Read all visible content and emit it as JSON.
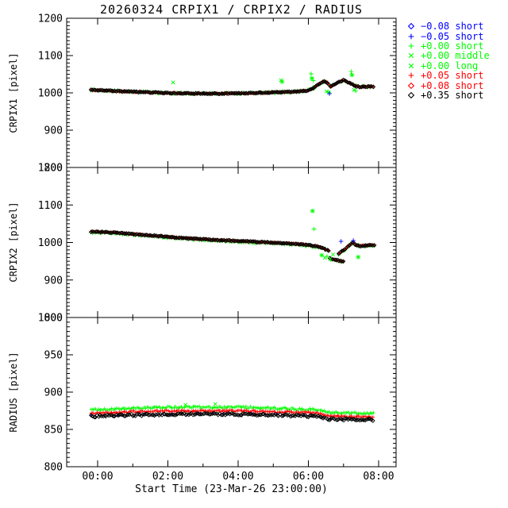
{
  "title": "20260324 CRPIX1 / CRPIX2 / RADIUS",
  "colors": {
    "black": "#000000",
    "red": "#ff0000",
    "green": "#00ff00",
    "blue": "#0000ff",
    "axis": "#000000",
    "bg": "#ffffff"
  },
  "axes": {
    "x": {
      "label": "Start Time (23-Mar-26 23:00:00)",
      "lim_hours": [
        -0.88,
        8.5
      ],
      "ticks": [
        {
          "t": 0,
          "label": "00:00"
        },
        {
          "t": 2,
          "label": "02:00"
        },
        {
          "t": 4,
          "label": "04:00"
        },
        {
          "t": 6,
          "label": "06:00"
        },
        {
          "t": 8,
          "label": "08:00"
        }
      ],
      "minor_every_hours": 1
    }
  },
  "legend": {
    "entries": [
      {
        "marker": "diamond",
        "color": "blue",
        "label": "−0.08 short"
      },
      {
        "marker": "plus",
        "color": "blue",
        "label": "−0.05 short"
      },
      {
        "marker": "plus",
        "color": "green",
        "label": "+0.00 short"
      },
      {
        "marker": "x",
        "color": "green",
        "label": "+0.00 middle"
      },
      {
        "marker": "x",
        "color": "green",
        "label": "+0.00 long"
      },
      {
        "marker": "plus",
        "color": "red",
        "label": "+0.05 short"
      },
      {
        "marker": "diamond",
        "color": "red",
        "label": "+0.08 short"
      },
      {
        "marker": "diamond",
        "color": "black",
        "label": "+0.35 short"
      }
    ]
  },
  "chart_data": [
    {
      "type": "scatter",
      "ylabel": "CRPIX1 [pixel]",
      "ylim": [
        800,
        1200
      ],
      "yticks": [
        800,
        900,
        1000,
        1100,
        1200
      ],
      "yminor": 10,
      "segments": [
        [
          [
            -0.18,
            1008
          ],
          [
            0.3,
            1006
          ],
          [
            1.0,
            1003
          ],
          [
            1.8,
            1000
          ],
          [
            2.6,
            998.5
          ],
          [
            3.4,
            998
          ],
          [
            4.2,
            999
          ],
          [
            5.0,
            1001
          ],
          [
            5.6,
            1003
          ],
          [
            5.95,
            1006
          ],
          [
            6.15,
            1013
          ],
          [
            6.3,
            1024
          ],
          [
            6.45,
            1031
          ],
          [
            6.55,
            1027
          ],
          [
            6.62,
            1016
          ],
          [
            6.7,
            1020
          ],
          [
            6.85,
            1028
          ],
          [
            7.0,
            1034
          ],
          [
            7.1,
            1030
          ],
          [
            7.2,
            1026
          ],
          [
            7.3,
            1020
          ],
          [
            7.45,
            1016
          ],
          [
            7.6,
            1017
          ],
          [
            7.88,
            1017
          ]
        ]
      ],
      "series": [
        {
          "name": "+0.00 short/middle/long",
          "color": "green",
          "marker": "plus",
          "spread": 3.0,
          "seed": 7,
          "step": 1,
          "offset": 0
        },
        {
          "name": "−0.08/−0.05 short",
          "color": "blue",
          "marker": "plus",
          "spread": 1.8,
          "seed": 5,
          "step": 16,
          "offset": 0
        },
        {
          "name": "+0.05/+0.08 short",
          "color": "red",
          "marker": "plus",
          "spread": 1.6,
          "seed": 13,
          "step": 1,
          "offset": 0
        },
        {
          "name": "+0.35 short",
          "color": "black",
          "marker": "diamond",
          "spread": 1.2,
          "seed": 3,
          "step": 1,
          "offset": 0
        }
      ],
      "outliers": [
        [
          2.15,
          1028,
          "green",
          "x"
        ],
        [
          5.22,
          1034,
          "green",
          "x"
        ],
        [
          5.25,
          1030,
          "green",
          "star"
        ],
        [
          6.08,
          1051,
          "green",
          "plus"
        ],
        [
          6.1,
          1039,
          "green",
          "star"
        ],
        [
          6.14,
          1033,
          "green",
          "plus"
        ],
        [
          6.52,
          1004,
          "green",
          "x"
        ],
        [
          6.58,
          1001,
          "green",
          "star"
        ],
        [
          7.22,
          1057,
          "green",
          "plus"
        ],
        [
          7.24,
          1048,
          "green",
          "star"
        ],
        [
          7.3,
          1008,
          "green",
          "x"
        ],
        [
          7.35,
          1005,
          "green",
          "plus"
        ],
        [
          6.6,
          998,
          "blue",
          "plus"
        ]
      ]
    },
    {
      "type": "scatter",
      "ylabel": "CRPIX2 [pixel]",
      "ylim": [
        800,
        1200
      ],
      "yticks": [
        800,
        900,
        1000,
        1100,
        1200
      ],
      "yminor": 10,
      "segments": [
        [
          [
            -0.18,
            1029
          ],
          [
            0.5,
            1026
          ],
          [
            1.0,
            1022.5
          ],
          [
            1.8,
            1016.5
          ],
          [
            2.6,
            1011
          ],
          [
            3.4,
            1006.5
          ],
          [
            4.2,
            1003
          ],
          [
            5.0,
            999.5
          ],
          [
            5.6,
            996.5
          ],
          [
            6.0,
            993.5
          ],
          [
            6.3,
            989
          ],
          [
            6.45,
            984
          ],
          [
            6.6,
            977
          ]
        ],
        [
          [
            6.62,
            957
          ],
          [
            6.8,
            953
          ],
          [
            7.0,
            949
          ]
        ],
        [
          [
            6.87,
            971
          ],
          [
            7.05,
            983
          ],
          [
            7.2,
            996
          ],
          [
            7.28,
            1001
          ],
          [
            7.35,
            992
          ],
          [
            7.5,
            991
          ],
          [
            7.88,
            993
          ]
        ]
      ],
      "series": [
        {
          "name": "+0.00 short/middle/long",
          "color": "green",
          "marker": "plus",
          "spread": 3.0,
          "seed": 27,
          "step": 1,
          "offset": -1.5
        },
        {
          "name": "−0.08/−0.05 short",
          "color": "blue",
          "marker": "plus",
          "spread": 1.8,
          "seed": 25,
          "step": 16,
          "offset": 0
        },
        {
          "name": "+0.05/+0.08 short",
          "color": "red",
          "marker": "plus",
          "spread": 1.6,
          "seed": 33,
          "step": 1,
          "offset": 0
        },
        {
          "name": "+0.35 short",
          "color": "black",
          "marker": "diamond",
          "spread": 1.2,
          "seed": 23,
          "step": 1,
          "offset": 0
        }
      ],
      "outliers": [
        [
          6.12,
          1084,
          "green",
          "star"
        ],
        [
          6.16,
          1036,
          "green",
          "plus"
        ],
        [
          6.38,
          966,
          "green",
          "star"
        ],
        [
          6.47,
          959,
          "green",
          "x"
        ],
        [
          6.53,
          963,
          "green",
          "plus"
        ],
        [
          6.62,
          956,
          "green",
          "x"
        ],
        [
          6.7,
          968,
          "green",
          "x"
        ],
        [
          7.42,
          961,
          "green",
          "star"
        ],
        [
          6.93,
          1003,
          "blue",
          "plus"
        ],
        [
          7.28,
          1005,
          "blue",
          "plus"
        ]
      ]
    },
    {
      "type": "scatter",
      "ylabel": "RADIUS [pixel]",
      "ylim": [
        800,
        1000
      ],
      "yticks": [
        800,
        850,
        900,
        950,
        1000
      ],
      "yminor": 6.25,
      "segments": [],
      "series": [
        {
          "name": "+0.00 short/middle/long",
          "color": "green",
          "marker": "plus",
          "spread": 1.4,
          "seed": 41,
          "step": 1,
          "offset": 0,
          "trend": [
            [
              -0.18,
              876
            ],
            [
              0.8,
              878
            ],
            [
              2.0,
              879.5
            ],
            [
              3.2,
              880
            ],
            [
              4.4,
              879.5
            ],
            [
              5.4,
              878
            ],
            [
              6.0,
              877
            ],
            [
              6.35,
              875.5
            ],
            [
              6.55,
              872.5
            ],
            [
              7.0,
              872
            ],
            [
              7.88,
              871.5
            ]
          ]
        },
        {
          "name": "−0.08/−0.05 short",
          "color": "blue",
          "marker": "plus",
          "spread": 1.2,
          "seed": 44,
          "step": 18,
          "offset": 1,
          "trend": [
            [
              -0.18,
              867.5
            ],
            [
              0.8,
              869
            ],
            [
              2.0,
              870
            ],
            [
              3.2,
              870.5
            ],
            [
              4.4,
              870
            ],
            [
              5.4,
              869
            ],
            [
              6.0,
              868
            ],
            [
              6.35,
              866.5
            ],
            [
              6.55,
              864
            ],
            [
              7.0,
              863.5
            ],
            [
              7.88,
              863
            ]
          ]
        },
        {
          "name": "+0.05/+0.08 short",
          "color": "red",
          "marker": "plus",
          "spread": 1.2,
          "seed": 42,
          "step": 1,
          "offset": 0,
          "trend": [
            [
              -0.18,
              871.5
            ],
            [
              0.8,
              873.5
            ],
            [
              2.0,
              874.5
            ],
            [
              3.2,
              875
            ],
            [
              4.4,
              874.5
            ],
            [
              5.4,
              873.5
            ],
            [
              6.0,
              872.5
            ],
            [
              6.35,
              871
            ],
            [
              6.55,
              868
            ],
            [
              7.0,
              867.5
            ],
            [
              7.88,
              867
            ]
          ]
        },
        {
          "name": "+0.35 short",
          "color": "black",
          "marker": "diamond",
          "spread": 1.4,
          "seed": 43,
          "step": 1,
          "offset": 0,
          "trend": [
            [
              -0.18,
              867.5
            ],
            [
              0.8,
              869
            ],
            [
              2.0,
              870
            ],
            [
              3.2,
              870.5
            ],
            [
              4.4,
              870
            ],
            [
              5.4,
              869
            ],
            [
              6.0,
              868
            ],
            [
              6.35,
              866.5
            ],
            [
              6.55,
              864
            ],
            [
              7.0,
              863.5
            ],
            [
              7.88,
              863
            ]
          ]
        }
      ],
      "outliers": [
        [
          2.5,
          883,
          "green",
          "x"
        ],
        [
          3.35,
          884,
          "green",
          "x"
        ]
      ]
    }
  ]
}
